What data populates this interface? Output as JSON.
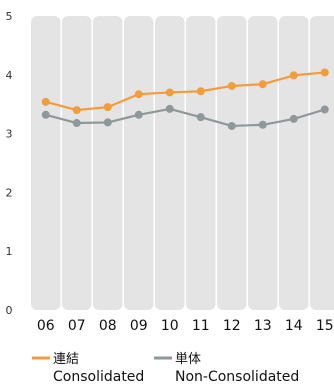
{
  "chart_data": {
    "type": "line",
    "categories": [
      "06",
      "07",
      "08",
      "09",
      "10",
      "11",
      "12",
      "13",
      "14",
      "15"
    ],
    "ylim": [
      0,
      5
    ],
    "y_ticks": [
      "0",
      "1",
      "2",
      "3",
      "4",
      "5"
    ],
    "grid": true,
    "legend_placement": "bottom",
    "series": [
      {
        "name": "連結",
        "name_en": "Consolidated",
        "color": "#f39c3a",
        "values": [
          3.54,
          3.4,
          3.45,
          3.67,
          3.7,
          3.72,
          3.81,
          3.84,
          3.99,
          4.04
        ]
      },
      {
        "name": "単体",
        "name_en": "Non-Consolidated",
        "color": "#8e9898",
        "values": [
          3.32,
          3.18,
          3.19,
          3.32,
          3.42,
          3.28,
          3.13,
          3.15,
          3.25,
          3.41
        ]
      }
    ],
    "column_band_color": "#e4e4e4"
  }
}
